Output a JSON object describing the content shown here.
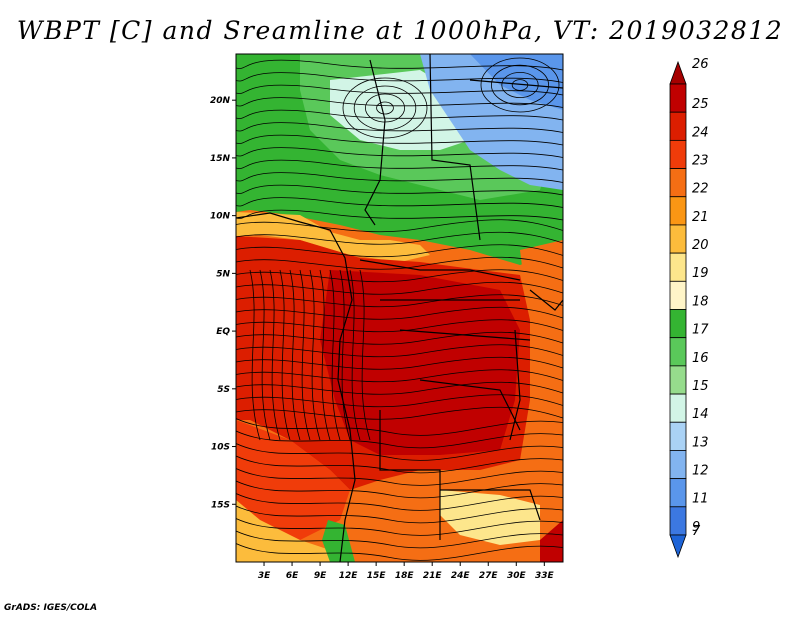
{
  "title": "WBPT [C] and Sreamline at 1000hPa, VT: 2019032812",
  "credit": "GrADS: IGES/COLA",
  "map": {
    "lon_range": [
      0,
      35
    ],
    "lat_range": [
      -20,
      24
    ],
    "lat_ticks": [
      {
        "value": 20,
        "label": "20N"
      },
      {
        "value": 15,
        "label": "15N"
      },
      {
        "value": 10,
        "label": "10N"
      },
      {
        "value": 5,
        "label": "5N"
      },
      {
        "value": 0,
        "label": "EQ"
      },
      {
        "value": -5,
        "label": "5S"
      },
      {
        "value": -10,
        "label": "10S"
      },
      {
        "value": -15,
        "label": "15S"
      }
    ],
    "lon_ticks": [
      {
        "value": 3,
        "label": "3E"
      },
      {
        "value": 6,
        "label": "6E"
      },
      {
        "value": 9,
        "label": "9E"
      },
      {
        "value": 12,
        "label": "12E"
      },
      {
        "value": 15,
        "label": "15E"
      },
      {
        "value": 18,
        "label": "18E"
      },
      {
        "value": 21,
        "label": "21E"
      },
      {
        "value": 24,
        "label": "24E"
      },
      {
        "value": 27,
        "label": "27E"
      },
      {
        "value": 30,
        "label": "30E"
      },
      {
        "value": 33,
        "label": "33E"
      }
    ]
  },
  "colorbar": {
    "levels": [
      {
        "label": "26",
        "color": "#a50000"
      },
      {
        "label": "25",
        "color": "#c00000"
      },
      {
        "label": "24",
        "color": "#dc1e00"
      },
      {
        "label": "23",
        "color": "#f03c0a"
      },
      {
        "label": "22",
        "color": "#f56e14"
      },
      {
        "label": "21",
        "color": "#fa9614"
      },
      {
        "label": "20",
        "color": "#fcbc3c"
      },
      {
        "label": "19",
        "color": "#fde68c"
      },
      {
        "label": "18",
        "color": "#fff5c8"
      },
      {
        "label": "17",
        "color": "#34b432"
      },
      {
        "label": "16",
        "color": "#5ac85a"
      },
      {
        "label": "15",
        "color": "#96dc8c"
      },
      {
        "label": "14",
        "color": "#d2f5e6"
      },
      {
        "label": "13",
        "color": "#aad2f5"
      },
      {
        "label": "12",
        "color": "#82b4f0"
      },
      {
        "label": "11",
        "color": "#5a96eb"
      },
      {
        "label": "9",
        "color": "#3c78e1"
      },
      {
        "label": "7",
        "color": "#1e64d7"
      }
    ]
  }
}
